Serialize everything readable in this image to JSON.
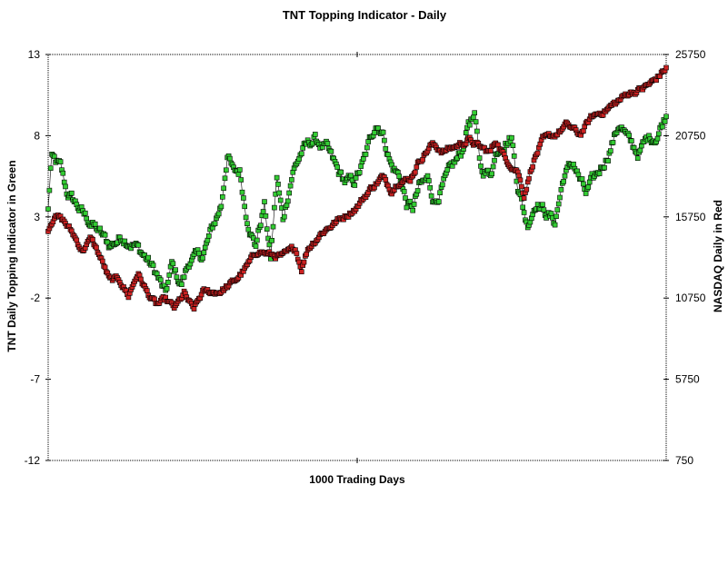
{
  "chart_data": {
    "type": "line",
    "title": "TNT Topping Indicator - Daily",
    "xlabel": "1000 Trading Days",
    "ylabel_left": "TNT Daily Topping Indicator in Green",
    "ylabel_right": "NASDAQ Daily in Red",
    "x_range": [
      0,
      1000
    ],
    "ylim_left": [
      -12,
      13
    ],
    "ylim_right": [
      750,
      25750
    ],
    "yticks_left": [
      "-12",
      "-7",
      "-2",
      "3",
      "8",
      "13"
    ],
    "yticks_right": [
      "750",
      "5750",
      "10750",
      "15750",
      "20750",
      "25750"
    ],
    "grid": false,
    "legend": "none",
    "series": [
      {
        "axis": "left",
        "color": "#33cc33",
        "marker": "square",
        "points": [
          [
            0,
            3.4
          ],
          [
            5,
            6.6
          ],
          [
            20,
            6.0
          ],
          [
            30,
            4.5
          ],
          [
            45,
            3.8
          ],
          [
            60,
            3.0
          ],
          [
            80,
            2.2
          ],
          [
            100,
            1.2
          ],
          [
            120,
            1.8
          ],
          [
            140,
            1.3
          ],
          [
            160,
            0.4
          ],
          [
            175,
            -0.5
          ],
          [
            190,
            -1.8
          ],
          [
            200,
            0.0
          ],
          [
            215,
            -1.2
          ],
          [
            230,
            0.4
          ],
          [
            250,
            0.6
          ],
          [
            265,
            2.2
          ],
          [
            280,
            3.7
          ],
          [
            290,
            6.9
          ],
          [
            300,
            5.7
          ],
          [
            310,
            5.8
          ],
          [
            320,
            3.3
          ],
          [
            335,
            1.2
          ],
          [
            350,
            3.7
          ],
          [
            360,
            0.4
          ],
          [
            370,
            5.4
          ],
          [
            380,
            2.8
          ],
          [
            395,
            5.7
          ],
          [
            410,
            7.0
          ],
          [
            430,
            7.8
          ],
          [
            450,
            7.2
          ],
          [
            470,
            5.7
          ],
          [
            480,
            5.2
          ],
          [
            495,
            5.1
          ],
          [
            510,
            6.3
          ],
          [
            530,
            8.8
          ],
          [
            540,
            8.4
          ],
          [
            555,
            6.2
          ],
          [
            570,
            5.4
          ],
          [
            580,
            3.8
          ],
          [
            590,
            3.5
          ],
          [
            600,
            4.8
          ],
          [
            615,
            5.3
          ],
          [
            625,
            3.9
          ],
          [
            640,
            5.0
          ],
          [
            655,
            6.1
          ],
          [
            670,
            7.0
          ],
          [
            680,
            8.9
          ],
          [
            690,
            9.1
          ],
          [
            700,
            6.0
          ],
          [
            715,
            5.6
          ],
          [
            725,
            7.0
          ],
          [
            735,
            7.6
          ],
          [
            750,
            7.9
          ],
          [
            760,
            5.0
          ],
          [
            775,
            2.5
          ],
          [
            790,
            4.0
          ],
          [
            805,
            3.3
          ],
          [
            820,
            2.7
          ],
          [
            835,
            5.6
          ],
          [
            850,
            6.3
          ],
          [
            870,
            4.4
          ],
          [
            890,
            5.7
          ],
          [
            905,
            6.8
          ],
          [
            925,
            8.8
          ],
          [
            940,
            7.6
          ],
          [
            955,
            6.9
          ],
          [
            970,
            7.8
          ],
          [
            985,
            8.0
          ],
          [
            1000,
            9.3
          ]
        ]
      },
      {
        "axis": "right",
        "color": "#cc2222",
        "marker": "square",
        "points": [
          [
            0,
            15000
          ],
          [
            10,
            15900
          ],
          [
            25,
            15500
          ],
          [
            40,
            14700
          ],
          [
            55,
            13700
          ],
          [
            70,
            14400
          ],
          [
            85,
            13200
          ],
          [
            100,
            11800
          ],
          [
            115,
            11900
          ],
          [
            130,
            10900
          ],
          [
            145,
            12300
          ],
          [
            160,
            11100
          ],
          [
            175,
            10300
          ],
          [
            190,
            10600
          ],
          [
            205,
            10100
          ],
          [
            220,
            11000
          ],
          [
            235,
            10000
          ],
          [
            250,
            11100
          ],
          [
            265,
            11100
          ],
          [
            280,
            11200
          ],
          [
            300,
            11700
          ],
          [
            320,
            12600
          ],
          [
            340,
            13700
          ],
          [
            360,
            13400
          ],
          [
            380,
            13300
          ],
          [
            400,
            13800
          ],
          [
            410,
            12600
          ],
          [
            420,
            13800
          ],
          [
            440,
            14700
          ],
          [
            460,
            15300
          ],
          [
            480,
            15800
          ],
          [
            500,
            16400
          ],
          [
            520,
            17400
          ],
          [
            540,
            18200
          ],
          [
            555,
            17400
          ],
          [
            570,
            18100
          ],
          [
            585,
            18000
          ],
          [
            600,
            19200
          ],
          [
            620,
            20200
          ],
          [
            640,
            19800
          ],
          [
            660,
            20100
          ],
          [
            680,
            20500
          ],
          [
            700,
            20000
          ],
          [
            715,
            19700
          ],
          [
            725,
            20500
          ],
          [
            740,
            19300
          ],
          [
            760,
            18600
          ],
          [
            770,
            17100
          ],
          [
            785,
            19200
          ],
          [
            800,
            20400
          ],
          [
            820,
            20800
          ],
          [
            840,
            21400
          ],
          [
            860,
            20800
          ],
          [
            880,
            21900
          ],
          [
            900,
            22300
          ],
          [
            920,
            22800
          ],
          [
            940,
            23400
          ],
          [
            960,
            23600
          ],
          [
            980,
            24100
          ],
          [
            1000,
            24900
          ]
        ]
      }
    ]
  }
}
